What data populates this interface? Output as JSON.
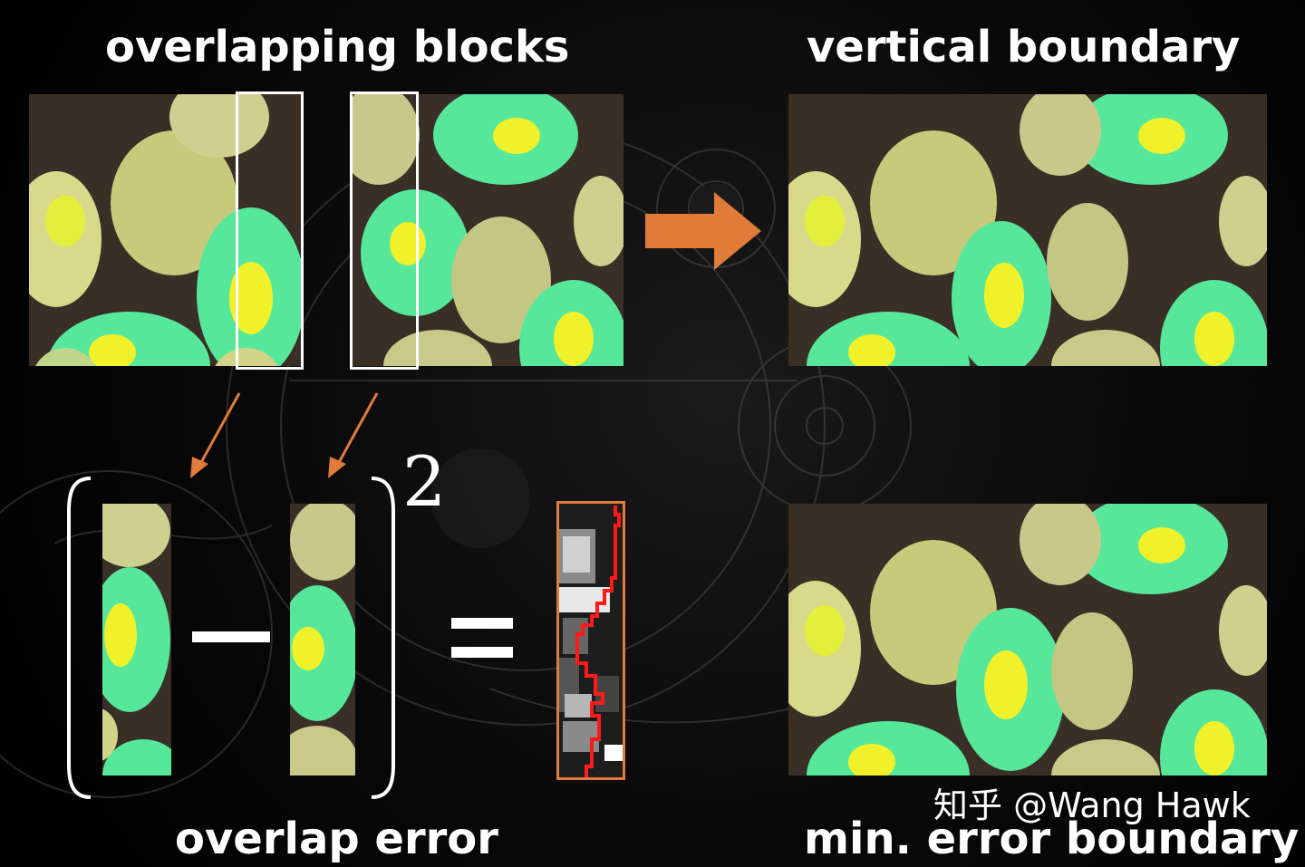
{
  "labels": {
    "overlapping_blocks": "overlapping blocks",
    "vertical_boundary": "vertical boundary",
    "overlap_error": "overlap error",
    "min_error_boundary": "min. error boundary"
  },
  "equation": {
    "exponent": "2"
  },
  "watermark": "知乎 @Wang Hawk",
  "colors": {
    "background": "#000000",
    "accent_orange": "#e07b39",
    "boundary_red": "#ff1a1a",
    "frame_white": "#ffffff"
  },
  "icons": {
    "main_arrow": "right-arrow-icon",
    "pointer_arrows": "diagonal-arrow-icon",
    "minus": "minus-icon",
    "equals": "equals-icon"
  }
}
